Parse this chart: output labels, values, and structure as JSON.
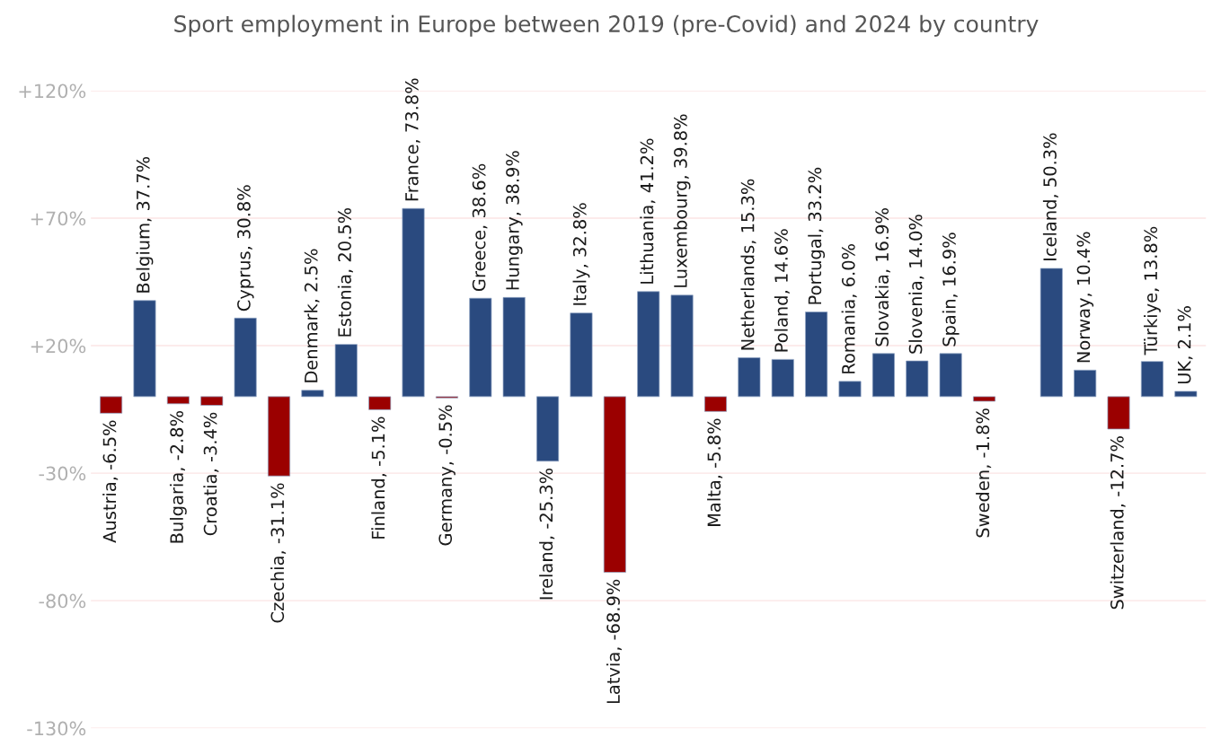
{
  "chart_data": {
    "type": "bar",
    "title": "Sport employment in Europe between 2019 (pre-Covid) and 2024 by country",
    "categories": [
      null,
      null,
      null,
      null,
      null,
      null,
      null,
      null,
      null,
      null,
      null,
      null,
      null,
      null,
      null,
      null,
      null,
      null,
      null,
      null,
      null,
      null,
      null,
      null,
      null,
      null,
      null,
      null,
      null,
      null,
      null,
      null,
      null
    ],
    "values": [
      -6.5,
      37.7,
      -2.8,
      -3.4,
      30.8,
      -31.1,
      2.5,
      20.5,
      -5.1,
      73.8,
      -0.5,
      38.6,
      38.9,
      -25.3,
      32.8,
      -68.9,
      41.2,
      39.8,
      -5.8,
      15.3,
      14.6,
      33.2,
      6.0,
      16.9,
      14.0,
      16.9,
      -1.8,
      null,
      50.3,
      10.4,
      -12.7,
      13.8,
      2.1
    ],
    "colors": [
      "#9b0000",
      "#2a4a7f",
      "#9b0000",
      "#9b0000",
      "#2a4a7f",
      "#9b0000",
      "#2a4a7f",
      "#2a4a7f",
      "#9b0000",
      "#2a4a7f",
      "#9b0000",
      "#2a4a7f",
      "#2a4a7f",
      "#2a4a7f",
      "#2a4a7f",
      "#9b0000",
      "#2a4a7f",
      "#2a4a7f",
      "#9b0000",
      "#2a4a7f",
      "#2a4a7f",
      "#2a4a7f",
      "#2a4a7f",
      "#2a4a7f",
      "#2a4a7f",
      "#2a4a7f",
      "#9b0000",
      "#2a4a7f",
      "#2a4a7f",
      "#2a4a7f",
      "#9b0000",
      "#2a4a7f",
      "#2a4a7f"
    ],
    "value_labels": [
      "Austria, -6.5%",
      "Belgium, 37.7%",
      "Bulgaria, -2.8%",
      "Croatia, -3.4%",
      "Cyprus, 30.8%",
      "Czechia, -31.1%",
      "Denmark, 2.5%",
      "Estonia, 20.5%",
      "Finland, -5.1%",
      "France, 73.8%",
      "Germany, -0.5%",
      "Greece, 38.6%",
      "Hungary, 38.9%",
      "Ireland, -25.3%",
      "Italy, 32.8%",
      "Latvia, -68.9%",
      "Lithuania, 41.2%",
      "Luxembourg, 39.8%",
      "Malta, -5.8%",
      "Netherlands, 15.3%",
      "Poland, 14.6%",
      "Portugal, 33.2%",
      "Romania, 6.0%",
      "Slovakia, 16.9%",
      "Slovenia, 14.0%",
      "Spain, 16.9%",
      "Sweden, -1.8%",
      null,
      "Iceland, 50.3%",
      "Norway, 10.4%",
      "Switzerland, -12.7%",
      "Türkiye, 13.8%",
      "UK, 2.1%"
    ],
    "ylim": [
      -130,
      120
    ],
    "yticks": [
      {
        "value": 120,
        "label": "+120%"
      },
      {
        "value": 70,
        "label": "+70%"
      },
      {
        "value": 20,
        "label": "+20%"
      },
      {
        "value": -30,
        "label": "-30%"
      },
      {
        "value": -80,
        "label": "-80%"
      },
      {
        "value": -130,
        "label": "-130%"
      }
    ],
    "grid": "y",
    "tick_labels": "y"
  }
}
